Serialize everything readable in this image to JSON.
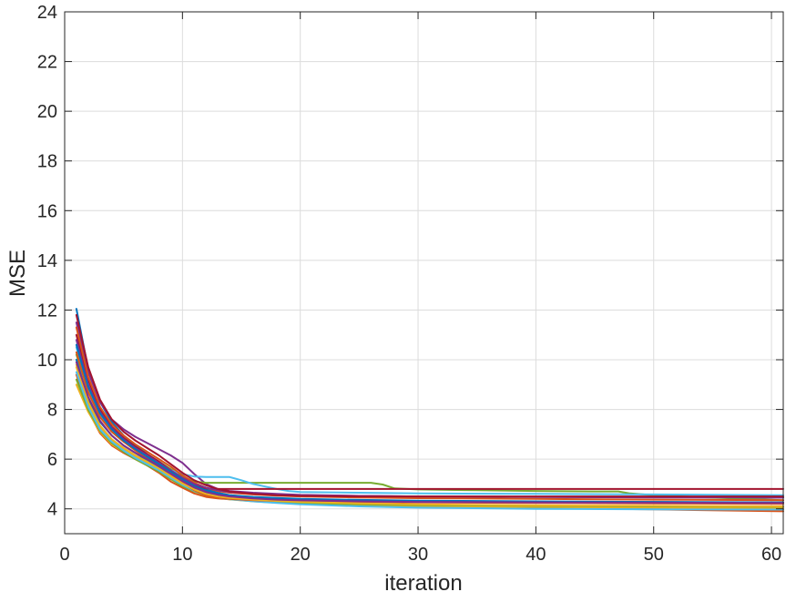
{
  "chart_data": {
    "type": "line",
    "title": "",
    "xlabel": "iteration",
    "ylabel": "MSE",
    "xlim": [
      0,
      61
    ],
    "ylim": [
      3,
      24
    ],
    "xticks": [
      0,
      10,
      20,
      30,
      40,
      50,
      60
    ],
    "yticks": [
      4,
      6,
      8,
      10,
      12,
      14,
      16,
      18,
      20,
      22,
      24
    ],
    "grid": true,
    "legend": "none",
    "series": [
      {
        "color": "#0072BD",
        "x": [
          1,
          2,
          3,
          4,
          5,
          6,
          7,
          8,
          9,
          10,
          11,
          12,
          13,
          14,
          16,
          18,
          20,
          25,
          30,
          40,
          50,
          61
        ],
        "y": [
          12.05,
          9.6,
          8.3,
          7.5,
          6.95,
          6.55,
          6.2,
          5.9,
          5.6,
          5.25,
          5.0,
          4.8,
          4.65,
          4.55,
          4.45,
          4.4,
          4.36,
          4.33,
          4.3,
          4.28,
          4.27,
          4.25
        ]
      },
      {
        "color": "#D95319",
        "x": [
          1,
          2,
          3,
          4,
          5,
          6,
          7,
          8,
          9,
          10,
          11,
          12,
          13,
          14,
          16,
          18,
          20,
          25,
          30,
          40,
          50,
          61
        ],
        "y": [
          9.4,
          7.95,
          7.05,
          6.55,
          6.25,
          6.0,
          5.75,
          5.45,
          5.1,
          4.85,
          4.62,
          4.48,
          4.42,
          4.38,
          4.32,
          4.27,
          4.2,
          4.12,
          4.08,
          4.03,
          3.98,
          3.9
        ]
      },
      {
        "color": "#EDB120",
        "x": [
          1,
          2,
          3,
          4,
          5,
          6,
          7,
          8,
          9,
          10,
          11,
          12,
          13,
          14,
          16,
          18,
          20,
          25,
          30,
          40,
          50,
          61
        ],
        "y": [
          9.0,
          7.9,
          7.1,
          6.6,
          6.3,
          6.05,
          5.8,
          5.5,
          5.2,
          4.95,
          4.75,
          4.6,
          4.5,
          4.43,
          4.35,
          4.3,
          4.25,
          4.18,
          4.14,
          4.1,
          4.05,
          4.0
        ]
      },
      {
        "color": "#7E2F8E",
        "x": [
          1,
          2,
          3,
          4,
          5,
          6,
          7,
          8,
          9,
          10,
          11,
          12,
          13,
          14,
          16,
          18,
          20,
          25,
          30,
          40,
          50,
          61
        ],
        "y": [
          11.5,
          9.5,
          8.3,
          7.6,
          7.2,
          6.9,
          6.65,
          6.4,
          6.15,
          5.85,
          5.4,
          5.0,
          4.8,
          4.72,
          4.65,
          4.6,
          4.56,
          4.52,
          4.5,
          4.48,
          4.46,
          4.45
        ]
      },
      {
        "color": "#77AC30",
        "x": [
          1,
          2,
          3,
          4,
          5,
          6,
          7,
          8,
          9,
          10,
          11,
          12,
          13,
          14,
          16,
          18,
          20,
          22,
          24,
          26,
          27,
          28,
          30,
          35,
          40,
          45,
          47,
          48,
          50,
          55,
          61
        ],
        "y": [
          10.2,
          8.7,
          7.7,
          7.1,
          6.7,
          6.4,
          6.15,
          5.9,
          5.6,
          5.3,
          5.1,
          5.05,
          5.05,
          5.05,
          5.05,
          5.05,
          5.05,
          5.05,
          5.05,
          5.05,
          4.98,
          4.82,
          4.78,
          4.75,
          4.72,
          4.7,
          4.7,
          4.62,
          4.55,
          4.45,
          4.35
        ]
      },
      {
        "color": "#4DBEEE",
        "x": [
          1,
          2,
          3,
          4,
          5,
          6,
          7,
          8,
          9,
          10,
          11,
          12,
          13,
          14,
          15,
          16,
          17,
          18,
          19,
          20,
          25,
          30,
          40,
          50,
          61
        ],
        "y": [
          10.5,
          8.8,
          7.8,
          7.2,
          6.75,
          6.4,
          6.1,
          5.8,
          5.55,
          5.4,
          5.3,
          5.28,
          5.28,
          5.28,
          5.15,
          5.0,
          4.9,
          4.8,
          4.72,
          4.68,
          4.65,
          4.62,
          4.6,
          4.58,
          4.55
        ]
      },
      {
        "color": "#A2142F",
        "x": [
          1,
          2,
          3,
          4,
          5,
          6,
          7,
          8,
          9,
          10,
          11,
          12,
          13,
          14,
          16,
          18,
          20,
          25,
          30,
          40,
          50,
          61
        ],
        "y": [
          11.0,
          9.2,
          8.0,
          7.3,
          6.85,
          6.5,
          6.2,
          5.9,
          5.55,
          5.2,
          4.95,
          4.82,
          4.8,
          4.8,
          4.8,
          4.8,
          4.8,
          4.8,
          4.8,
          4.8,
          4.8,
          4.8
        ]
      },
      {
        "color": "#0072BD",
        "x": [
          1,
          2,
          3,
          4,
          5,
          6,
          7,
          8,
          9,
          10,
          11,
          12,
          13,
          14,
          16,
          18,
          20,
          25,
          30,
          40,
          50,
          61
        ],
        "y": [
          10.0,
          8.4,
          7.5,
          6.95,
          6.55,
          6.25,
          5.95,
          5.65,
          5.35,
          5.05,
          4.8,
          4.62,
          4.5,
          4.42,
          4.33,
          4.27,
          4.22,
          4.15,
          4.1,
          4.06,
          4.02,
          3.98
        ]
      },
      {
        "color": "#D95319",
        "x": [
          1,
          2,
          3,
          4,
          5,
          6,
          7,
          8,
          9,
          10,
          11,
          12,
          13,
          14,
          16,
          18,
          20,
          25,
          30,
          40,
          50,
          61
        ],
        "y": [
          11.3,
          9.3,
          8.1,
          7.4,
          6.95,
          6.6,
          6.3,
          6.0,
          5.7,
          5.35,
          5.05,
          4.85,
          4.72,
          4.65,
          4.58,
          4.53,
          4.5,
          4.46,
          4.43,
          4.4,
          4.37,
          4.35
        ]
      },
      {
        "color": "#EDB120",
        "x": [
          1,
          2,
          3,
          4,
          5,
          6,
          7,
          8,
          9,
          10,
          11,
          12,
          13,
          14,
          16,
          18,
          20,
          25,
          30,
          40,
          50,
          61
        ],
        "y": [
          9.7,
          8.2,
          7.3,
          6.75,
          6.4,
          6.1,
          5.85,
          5.6,
          5.3,
          5.0,
          4.75,
          4.55,
          4.45,
          4.38,
          4.3,
          4.25,
          4.2,
          4.14,
          4.1,
          4.07,
          4.05,
          4.02
        ]
      },
      {
        "color": "#7E2F8E",
        "x": [
          1,
          2,
          3,
          4,
          5,
          6,
          7,
          8,
          9,
          10,
          11,
          12,
          13,
          14,
          16,
          18,
          20,
          25,
          30,
          40,
          50,
          61
        ],
        "y": [
          10.8,
          9.0,
          7.9,
          7.25,
          6.8,
          6.45,
          6.15,
          5.85,
          5.55,
          5.25,
          5.0,
          4.85,
          4.75,
          4.68,
          4.62,
          4.58,
          4.55,
          4.52,
          4.5,
          4.48,
          4.47,
          4.45
        ]
      },
      {
        "color": "#77AC30",
        "x": [
          1,
          2,
          3,
          4,
          5,
          6,
          7,
          8,
          9,
          10,
          11,
          12,
          13,
          14,
          16,
          18,
          20,
          25,
          30,
          40,
          50,
          61
        ],
        "y": [
          9.2,
          8.0,
          7.15,
          6.65,
          6.3,
          6.0,
          5.75,
          5.5,
          5.2,
          4.92,
          4.7,
          4.55,
          4.46,
          4.4,
          4.33,
          4.28,
          4.24,
          4.18,
          4.15,
          4.12,
          4.1,
          4.08
        ]
      },
      {
        "color": "#4DBEEE",
        "x": [
          1,
          2,
          3,
          4,
          5,
          6,
          7,
          8,
          9,
          10,
          11,
          12,
          13,
          14,
          16,
          18,
          20,
          25,
          30,
          40,
          50,
          61
        ],
        "y": [
          9.5,
          8.1,
          7.2,
          6.7,
          6.35,
          6.05,
          5.8,
          5.55,
          5.25,
          4.97,
          4.73,
          4.56,
          4.46,
          4.39,
          4.3,
          4.24,
          4.18,
          4.1,
          4.05,
          4.0,
          3.98,
          3.97
        ]
      },
      {
        "color": "#A2142F",
        "x": [
          1,
          2,
          3,
          4,
          5,
          6,
          7,
          8,
          9,
          10,
          11,
          12,
          13,
          14,
          16,
          18,
          20,
          25,
          30,
          40,
          50,
          61
        ],
        "y": [
          11.8,
          9.7,
          8.4,
          7.6,
          7.1,
          6.75,
          6.45,
          6.15,
          5.8,
          5.45,
          5.15,
          4.95,
          4.8,
          4.7,
          4.6,
          4.55,
          4.52,
          4.5,
          4.5,
          4.5,
          4.5,
          4.5
        ]
      },
      {
        "color": "#D95319",
        "x": [
          1,
          2,
          3,
          4,
          5,
          6,
          7,
          8,
          9,
          10,
          11,
          12,
          13,
          14,
          16,
          18,
          20,
          25,
          30,
          40,
          50,
          61
        ],
        "y": [
          10.3,
          8.7,
          7.7,
          7.1,
          6.7,
          6.35,
          6.05,
          5.75,
          5.4,
          5.05,
          4.75,
          4.55,
          4.45,
          4.4,
          4.35,
          4.32,
          4.3,
          4.28,
          4.26,
          4.24,
          4.22,
          4.2
        ]
      },
      {
        "color": "#0072BD",
        "x": [
          1,
          2,
          3,
          4,
          5,
          6,
          7,
          8,
          9,
          10,
          11,
          12,
          13,
          14,
          16,
          18,
          20,
          25,
          30,
          40,
          50,
          61
        ],
        "y": [
          10.6,
          8.9,
          7.85,
          7.2,
          6.75,
          6.4,
          6.1,
          5.8,
          5.5,
          5.18,
          4.92,
          4.74,
          4.62,
          4.55,
          4.48,
          4.44,
          4.4,
          4.36,
          4.33,
          4.3,
          4.28,
          4.26
        ]
      },
      {
        "color": "#EDB120",
        "x": [
          1,
          2,
          3,
          4,
          5,
          6,
          7,
          8,
          9,
          10,
          11,
          12,
          13,
          14,
          16,
          18,
          20,
          25,
          30,
          40,
          50,
          61
        ],
        "y": [
          9.8,
          8.3,
          7.35,
          6.8,
          6.45,
          6.15,
          5.9,
          5.62,
          5.32,
          5.02,
          4.78,
          4.6,
          4.5,
          4.44,
          4.37,
          4.32,
          4.28,
          4.22,
          4.18,
          4.14,
          4.12,
          4.1
        ]
      },
      {
        "color": "#7E2F8E",
        "x": [
          1,
          2,
          3,
          4,
          5,
          6,
          7,
          8,
          9,
          10,
          11,
          12,
          13,
          14,
          16,
          18,
          20,
          25,
          30,
          40,
          50,
          61
        ],
        "y": [
          9.9,
          8.5,
          7.55,
          6.95,
          6.55,
          6.25,
          6.0,
          5.72,
          5.42,
          5.12,
          4.86,
          4.68,
          4.57,
          4.5,
          4.42,
          4.37,
          4.34,
          4.3,
          4.28,
          4.26,
          4.25,
          4.24
        ]
      }
    ]
  }
}
